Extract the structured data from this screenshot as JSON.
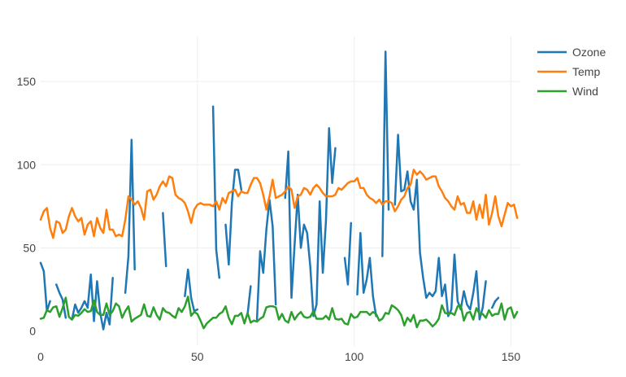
{
  "chart_data": {
    "type": "line",
    "x_range": [
      0,
      153
    ],
    "y_range": [
      -9,
      177
    ],
    "x_ticks": [
      0,
      50,
      100,
      150
    ],
    "y_ticks": [
      0,
      50,
      100,
      150
    ],
    "grid": true,
    "legend_position": "top-right",
    "series": [
      {
        "name": "Ozone",
        "color": "#1f77b4",
        "values": [
          41,
          36,
          12,
          18,
          null,
          28,
          23,
          19,
          8,
          null,
          7,
          16,
          11,
          14,
          18,
          14,
          34,
          6,
          30,
          11,
          1,
          11,
          4,
          32,
          null,
          null,
          null,
          23,
          45,
          115,
          37,
          null,
          null,
          null,
          null,
          null,
          null,
          29,
          null,
          71,
          39,
          null,
          null,
          23,
          null,
          null,
          21,
          37,
          20,
          12,
          13,
          null,
          null,
          null,
          null,
          135,
          49,
          32,
          null,
          64,
          40,
          77,
          97,
          97,
          85,
          null,
          10,
          27,
          null,
          7,
          48,
          35,
          61,
          79,
          63,
          16,
          null,
          null,
          80,
          108,
          20,
          52,
          82,
          50,
          64,
          59,
          39,
          9,
          16,
          78,
          35,
          66,
          122,
          89,
          110,
          null,
          null,
          44,
          28,
          65,
          null,
          22,
          59,
          23,
          31,
          44,
          21,
          9,
          null,
          45,
          168,
          73,
          null,
          76,
          118,
          84,
          85,
          96,
          78,
          73,
          91,
          47,
          32,
          20,
          23,
          21,
          24,
          44,
          21,
          28,
          9,
          13,
          46,
          18,
          13,
          24,
          16,
          13,
          23,
          36,
          7,
          14,
          30,
          null,
          14,
          18,
          20
        ]
      },
      {
        "name": "Temp",
        "color": "#ff7f0e",
        "values": [
          67,
          72,
          74,
          62,
          56,
          66,
          65,
          59,
          61,
          69,
          74,
          69,
          66,
          68,
          58,
          64,
          66,
          57,
          68,
          62,
          59,
          73,
          61,
          61,
          57,
          58,
          57,
          67,
          81,
          79,
          76,
          78,
          74,
          67,
          84,
          85,
          79,
          82,
          87,
          90,
          87,
          93,
          92,
          82,
          80,
          79,
          77,
          72,
          65,
          73,
          76,
          77,
          76,
          76,
          76,
          75,
          78,
          73,
          80,
          77,
          83,
          84,
          85,
          81,
          84,
          83,
          83,
          88,
          92,
          92,
          89,
          82,
          73,
          81,
          91,
          80,
          81,
          82,
          84,
          87,
          85,
          74,
          81,
          82,
          86,
          85,
          82,
          86,
          88,
          86,
          83,
          81,
          81,
          81,
          82,
          86,
          85,
          87,
          89,
          90,
          90,
          92,
          86,
          86,
          82,
          80,
          79,
          77,
          79,
          76,
          78,
          78,
          77,
          72,
          75,
          79,
          81,
          86,
          88,
          97,
          94,
          96,
          94,
          91,
          92,
          93,
          93,
          87,
          84,
          80,
          78,
          75,
          73,
          81,
          76,
          77,
          71,
          71,
          78,
          67,
          76,
          68,
          82,
          64,
          71,
          81,
          69,
          63,
          70,
          77,
          75,
          76,
          68
        ]
      },
      {
        "name": "Wind",
        "color": "#2ca02c",
        "values": [
          7.4,
          8.0,
          12.6,
          11.5,
          14.3,
          14.9,
          8.6,
          13.8,
          20.1,
          8.6,
          6.9,
          9.7,
          9.2,
          10.9,
          13.2,
          11.5,
          12.0,
          18.4,
          11.5,
          9.7,
          9.7,
          16.6,
          9.7,
          12.0,
          16.6,
          14.9,
          8.0,
          12.0,
          14.9,
          5.7,
          7.4,
          8.6,
          9.7,
          16.1,
          9.2,
          8.6,
          14.3,
          9.7,
          6.9,
          13.8,
          11.5,
          10.9,
          9.2,
          8.0,
          13.8,
          11.5,
          14.9,
          20.7,
          9.2,
          11.5,
          10.3,
          6.3,
          1.7,
          4.6,
          6.3,
          8.0,
          8.0,
          10.3,
          11.5,
          14.9,
          8.0,
          4.1,
          9.2,
          9.2,
          10.9,
          4.6,
          10.9,
          5.1,
          6.3,
          5.7,
          7.4,
          8.6,
          14.3,
          14.9,
          14.9,
          14.3,
          6.9,
          10.3,
          6.3,
          5.1,
          11.5,
          6.9,
          9.7,
          11.5,
          8.6,
          8.0,
          8.6,
          12.0,
          7.4,
          7.4,
          7.4,
          9.2,
          6.9,
          13.8,
          7.4,
          6.9,
          7.4,
          4.6,
          4.0,
          10.3,
          8.0,
          8.6,
          11.5,
          11.5,
          11.5,
          9.7,
          11.5,
          10.3,
          6.3,
          7.4,
          10.9,
          10.3,
          15.5,
          14.3,
          12.6,
          9.7,
          3.4,
          8.0,
          5.7,
          9.7,
          2.3,
          6.3,
          6.3,
          6.9,
          5.1,
          2.8,
          4.6,
          7.4,
          15.5,
          10.9,
          10.3,
          10.9,
          9.7,
          14.9,
          15.5,
          6.3,
          10.9,
          11.5,
          6.9,
          13.8,
          10.3,
          10.3,
          8.0,
          12.6,
          9.2,
          10.3,
          10.3,
          16.6,
          6.9,
          13.2,
          14.3,
          8.0,
          11.5
        ]
      }
    ]
  }
}
